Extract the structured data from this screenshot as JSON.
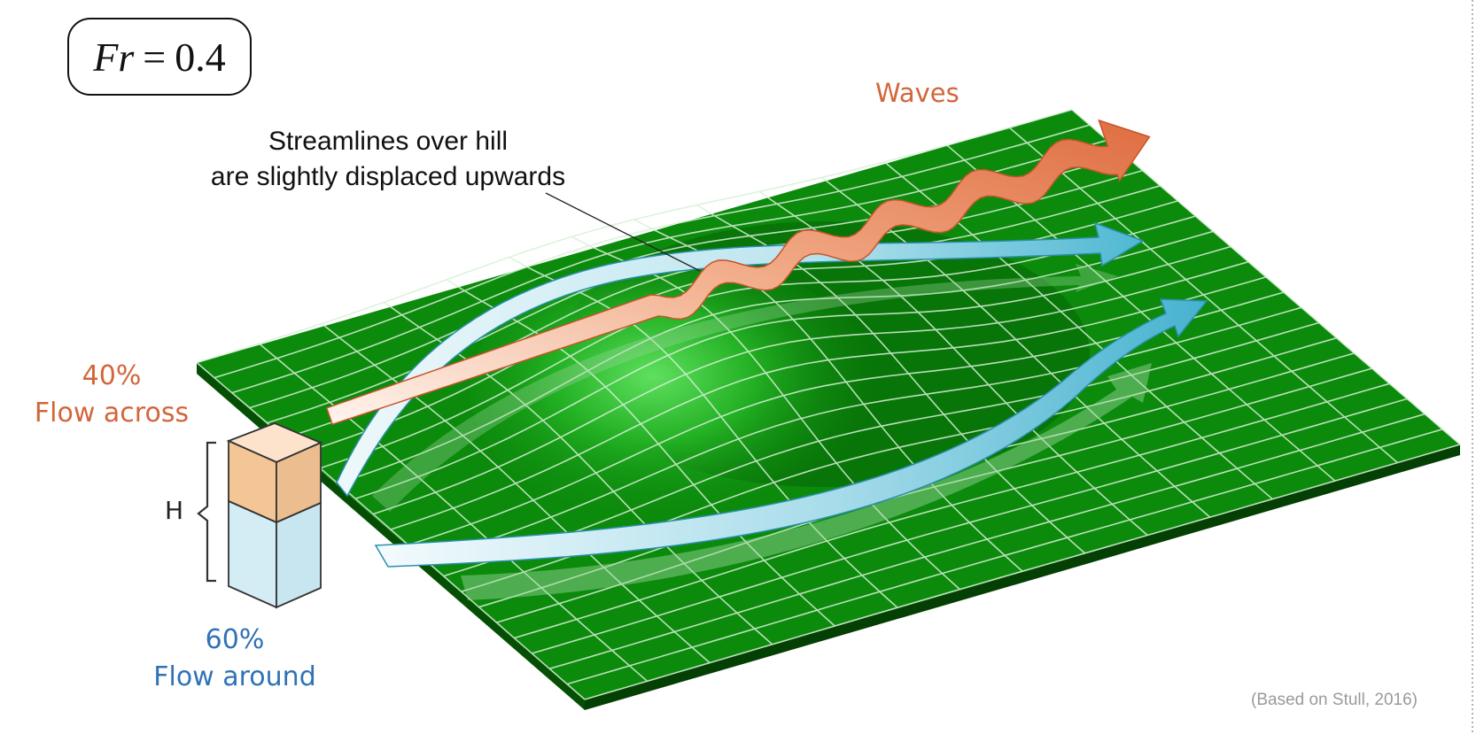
{
  "froude": {
    "symbol": "Fr",
    "equals": "=",
    "value": "0.4"
  },
  "labels": {
    "waves": "Waves",
    "note_line1": "Streamlines over hill",
    "note_line2": "are slightly displaced upwards",
    "across_pct": "40%",
    "across_text": "Flow across",
    "around_pct": "60%",
    "around_text": "Flow around",
    "height": "H",
    "credit": "(Based on Stull, 2016)"
  },
  "colors": {
    "terrain": "#0c8a0c",
    "terrain_dark": "#066806",
    "grid": "#d8f0d8",
    "across": "#e07a4f",
    "around": "#5bbfd4",
    "label_orange": "#d2663a",
    "label_blue": "#2f72b6"
  }
}
